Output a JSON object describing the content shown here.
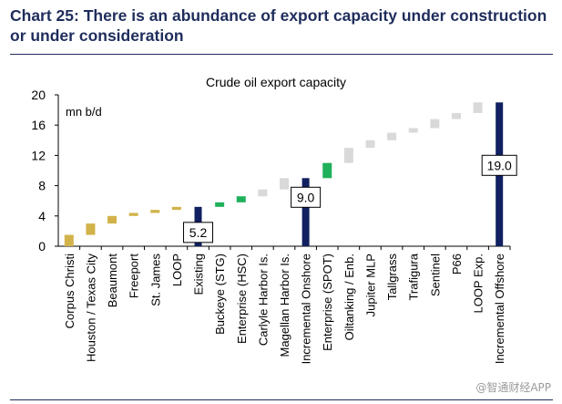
{
  "header": {
    "title": "Chart 25: There is an abundance of export capacity under construction\nor under consideration"
  },
  "watermark": "@智通财经APP",
  "colors": {
    "tan": "#d2b24a",
    "green": "#1fb05a",
    "grey": "#d9d9d9",
    "navy": "#102060"
  },
  "chart_data": {
    "type": "bar",
    "subtype": "waterfall",
    "title": "Crude oil export capacity",
    "unit_label": "mn b/d",
    "ylim": [
      0,
      20
    ],
    "yticks": [
      0,
      4,
      8,
      12,
      16,
      20
    ],
    "categories": [
      "Corpus Christi",
      "Houston / Texas City",
      "Beaumont",
      "Freeport",
      "St. James",
      "LOOP",
      "Existing",
      "Buckeye (STG)",
      "Enterprise (HSC)",
      "Carlyle Harbor Is.",
      "Magellan Harbor Is.",
      "Incremental Onshore",
      "Enterprise (SPOT)",
      "Oiltanking / Enb.",
      "Jupiter MLP",
      "Tallgrass",
      "Trafigura",
      "Sentinel",
      "P66",
      "LOOP Exp.",
      "Incremental Offshore"
    ],
    "bars": [
      {
        "category": "Corpus Christi",
        "from": 0.0,
        "to": 1.5,
        "kind": "tan"
      },
      {
        "category": "Houston / Texas City",
        "from": 1.5,
        "to": 3.0,
        "kind": "tan"
      },
      {
        "category": "Beaumont",
        "from": 3.0,
        "to": 4.0,
        "kind": "tan"
      },
      {
        "category": "Freeport",
        "from": 4.0,
        "to": 4.4,
        "kind": "tan"
      },
      {
        "category": "St. James",
        "from": 4.4,
        "to": 4.8,
        "kind": "tan"
      },
      {
        "category": "LOOP",
        "from": 4.8,
        "to": 5.2,
        "kind": "tan"
      },
      {
        "category": "Existing",
        "from": 0.0,
        "to": 5.2,
        "kind": "navy",
        "label": "5.2"
      },
      {
        "category": "Buckeye (STG)",
        "from": 5.2,
        "to": 5.8,
        "kind": "green"
      },
      {
        "category": "Enterprise (HSC)",
        "from": 5.8,
        "to": 6.6,
        "kind": "green"
      },
      {
        "category": "Carlyle Harbor Is.",
        "from": 6.6,
        "to": 7.5,
        "kind": "grey"
      },
      {
        "category": "Magellan Harbor Is.",
        "from": 7.5,
        "to": 9.0,
        "kind": "grey"
      },
      {
        "category": "Incremental Onshore",
        "from": 0.0,
        "to": 9.0,
        "kind": "navy",
        "label": "9.0"
      },
      {
        "category": "Enterprise (SPOT)",
        "from": 9.0,
        "to": 11.0,
        "kind": "green"
      },
      {
        "category": "Oiltanking / Enb.",
        "from": 11.0,
        "to": 13.0,
        "kind": "grey"
      },
      {
        "category": "Jupiter MLP",
        "from": 13.0,
        "to": 14.0,
        "kind": "grey"
      },
      {
        "category": "Tallgrass",
        "from": 14.0,
        "to": 15.0,
        "kind": "grey"
      },
      {
        "category": "Trafigura",
        "from": 15.0,
        "to": 15.6,
        "kind": "grey"
      },
      {
        "category": "Sentinel",
        "from": 15.6,
        "to": 16.8,
        "kind": "grey"
      },
      {
        "category": "P66",
        "from": 16.8,
        "to": 17.6,
        "kind": "grey"
      },
      {
        "category": "LOOP Exp.",
        "from": 17.6,
        "to": 19.0,
        "kind": "grey"
      },
      {
        "category": "Incremental Offshore",
        "from": 0.0,
        "to": 19.0,
        "kind": "navy",
        "label": "19.0"
      }
    ]
  }
}
